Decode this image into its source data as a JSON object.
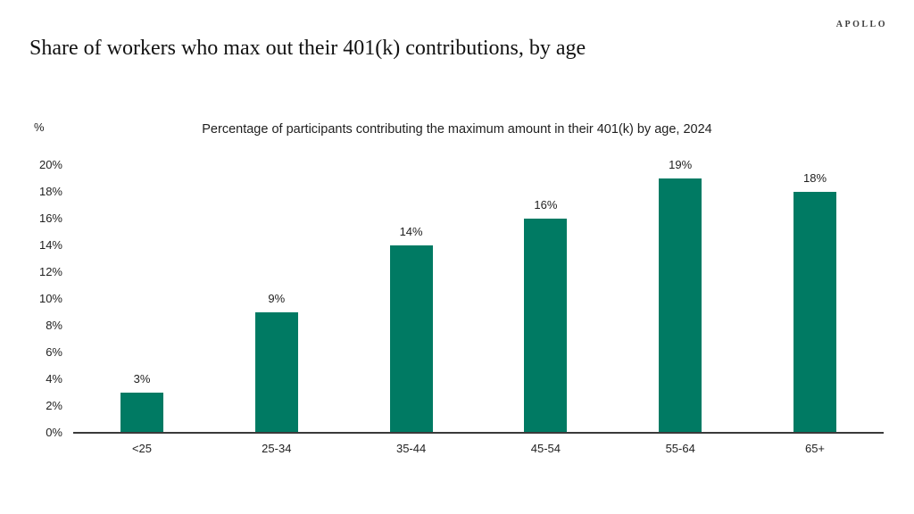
{
  "header": {
    "logo": "APOLLO",
    "title": "Share of workers who max out their 401(k) contributions, by age"
  },
  "chart_data": {
    "type": "bar",
    "title": "Percentage of participants contributing the maximum amount in their 401(k) by age, 2024",
    "unit_label": "%",
    "categories": [
      "<25",
      "25-34",
      "35-44",
      "45-54",
      "55-64",
      "65+"
    ],
    "values": [
      3,
      9,
      14,
      16,
      19,
      18
    ],
    "value_labels": [
      "3%",
      "9%",
      "14%",
      "16%",
      "19%",
      "18%"
    ],
    "y_ticks": [
      "0%",
      "2%",
      "4%",
      "6%",
      "8%",
      "10%",
      "12%",
      "14%",
      "16%",
      "18%",
      "20%"
    ],
    "y_tick_values": [
      0,
      2,
      4,
      6,
      8,
      10,
      12,
      14,
      16,
      18,
      20
    ],
    "ylim": [
      0,
      20
    ],
    "xlabel": "",
    "ylabel": "%",
    "grid": false,
    "legend": "none",
    "bar_color": "#007A63",
    "axis_color": "#3A3A3A",
    "text_color": "#1F1F1F"
  }
}
